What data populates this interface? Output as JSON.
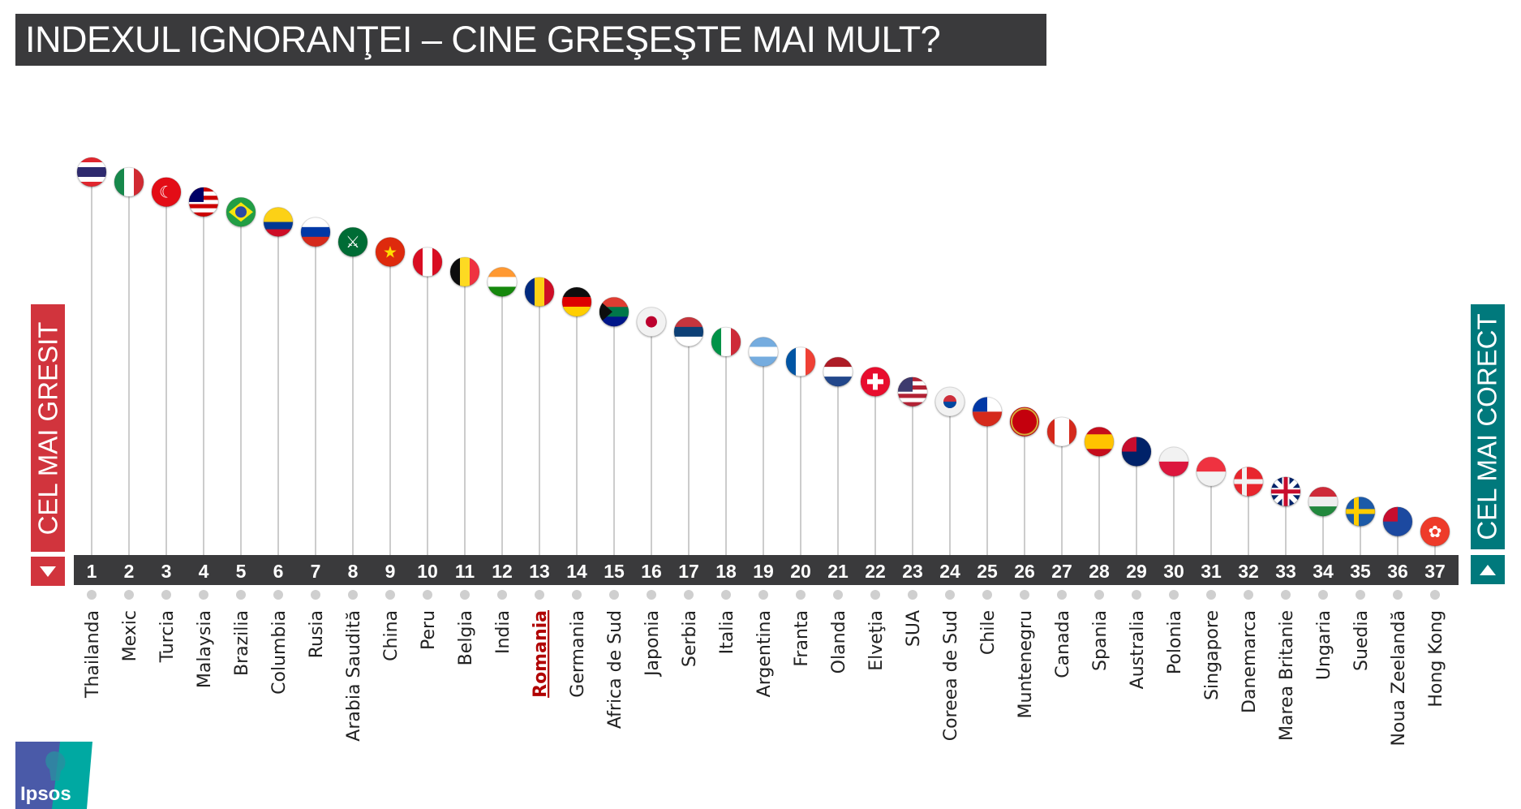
{
  "title": "INDEXUL IGNORANŢEI – CINE GREŞEŞTE MAI MULT?",
  "left_label": "CEL MAI GRESIT",
  "right_label": "CEL MAI CORECT",
  "logo_text": "Ipsos",
  "colors": {
    "bar": "#3a3a3c",
    "wrong": "#d1343d",
    "correct": "#00797c",
    "stem": "#cccccc",
    "highlight": "#b00000"
  },
  "chart_data": {
    "type": "scatter",
    "title": "",
    "xlabel": "",
    "ylabel": "",
    "highlight": "Romania",
    "points": [
      {
        "rank": 1,
        "country": "Thailanda",
        "flag": {
          "p": "h",
          "c": [
            "#e0262e",
            "#ffffff",
            "#2d2a6e",
            "#2d2a6e",
            "#ffffff",
            "#e0262e"
          ]
        }
      },
      {
        "rank": 2,
        "country": "Mexic",
        "flag": {
          "p": "v",
          "c": [
            "#14884b",
            "#ffffff",
            "#d12a30"
          ]
        }
      },
      {
        "rank": 3,
        "country": "Turcia",
        "flag": {
          "p": "h",
          "c": [
            "#e30a17"
          ],
          "sym": "☾",
          "sc": "#ffffff"
        }
      },
      {
        "rank": 4,
        "country": "Malaysia",
        "flag": {
          "p": "h",
          "c": [
            "#cc0001",
            "#ffffff",
            "#cc0001",
            "#ffffff",
            "#cc0001",
            "#ffffff",
            "#cc0001"
          ],
          "canton": "#010066"
        }
      },
      {
        "rank": 5,
        "country": "Brazilia",
        "flag": {
          "p": "h",
          "c": [
            "#229e45"
          ],
          "diamond": "#f8e509",
          "disc": "#2b49a3"
        }
      },
      {
        "rank": 6,
        "country": "Columbia",
        "flag": {
          "p": "h",
          "c": [
            "#fcd116",
            "#fcd116",
            "#003893",
            "#ce1126"
          ]
        }
      },
      {
        "rank": 7,
        "country": "Rusia",
        "flag": {
          "p": "h",
          "c": [
            "#ffffff",
            "#0039a6",
            "#d52b1e"
          ]
        }
      },
      {
        "rank": 8,
        "country": "Arabia Saudită",
        "flag": {
          "p": "h",
          "c": [
            "#006c35"
          ],
          "sym": "⚔",
          "sc": "#ffffff"
        }
      },
      {
        "rank": 9,
        "country": "China",
        "flag": {
          "p": "h",
          "c": [
            "#de2910"
          ],
          "sym": "★",
          "sc": "#ffde00"
        }
      },
      {
        "rank": 10,
        "country": "Peru",
        "flag": {
          "p": "v",
          "c": [
            "#d91023",
            "#ffffff",
            "#d91023"
          ]
        }
      },
      {
        "rank": 11,
        "country": "Belgia",
        "flag": {
          "p": "v",
          "c": [
            "#111111",
            "#fdda24",
            "#ef3340"
          ]
        }
      },
      {
        "rank": 12,
        "country": "India",
        "flag": {
          "p": "h",
          "c": [
            "#ff9933",
            "#ffffff",
            "#138808"
          ]
        }
      },
      {
        "rank": 13,
        "country": "Romania",
        "flag": {
          "p": "v",
          "c": [
            "#002b7f",
            "#fcd116",
            "#ce1126"
          ]
        }
      },
      {
        "rank": 14,
        "country": "Germania",
        "flag": {
          "p": "h",
          "c": [
            "#111111",
            "#dd0000",
            "#ffce00"
          ]
        }
      },
      {
        "rank": 15,
        "country": "Africa de Sud",
        "flag": {
          "p": "h",
          "c": [
            "#e03c31",
            "#007749",
            "#001489"
          ],
          "tri": "#111111"
        }
      },
      {
        "rank": 16,
        "country": "Japonia",
        "flag": {
          "p": "h",
          "c": [
            "#f2f2f2"
          ],
          "disc": "#bc002d"
        }
      },
      {
        "rank": 17,
        "country": "Serbia",
        "flag": {
          "p": "h",
          "c": [
            "#c6363c",
            "#0c4076",
            "#ffffff"
          ]
        }
      },
      {
        "rank": 18,
        "country": "Italia",
        "flag": {
          "p": "v",
          "c": [
            "#009246",
            "#ffffff",
            "#ce2b37"
          ]
        }
      },
      {
        "rank": 19,
        "country": "Argentina",
        "flag": {
          "p": "h",
          "c": [
            "#74acdf",
            "#ffffff",
            "#74acdf"
          ]
        }
      },
      {
        "rank": 20,
        "country": "Franta",
        "flag": {
          "p": "v",
          "c": [
            "#0055a4",
            "#ffffff",
            "#ef4135"
          ]
        }
      },
      {
        "rank": 21,
        "country": "Olanda",
        "flag": {
          "p": "h",
          "c": [
            "#ae1c28",
            "#ffffff",
            "#21468b"
          ]
        }
      },
      {
        "rank": 22,
        "country": "Elveţia",
        "flag": {
          "p": "h",
          "c": [
            "#e8112d"
          ],
          "cross": "#ffffff"
        }
      },
      {
        "rank": 23,
        "country": "SUA",
        "flag": {
          "p": "h",
          "c": [
            "#b22234",
            "#ffffff",
            "#b22234",
            "#ffffff",
            "#b22234",
            "#ffffff",
            "#b22234"
          ],
          "canton": "#3c3b6e"
        }
      },
      {
        "rank": 24,
        "country": "Coreea de Sud",
        "flag": {
          "p": "h",
          "c": [
            "#f2f2f2"
          ],
          "disc": "#cd2e3a",
          "disc2": "#0047a0"
        }
      },
      {
        "rank": 25,
        "country": "Chile",
        "flag": {
          "p": "h",
          "c": [
            "#ffffff",
            "#d52b1e"
          ],
          "canton": "#0039a6"
        }
      },
      {
        "rank": 26,
        "country": "Muntenegru",
        "flag": {
          "p": "h",
          "c": [
            "#c40308"
          ],
          "ring": "#d3ae3b"
        }
      },
      {
        "rank": 27,
        "country": "Canada",
        "flag": {
          "p": "v",
          "c": [
            "#d52b1e",
            "#ffffff",
            "#ffffff",
            "#d52b1e"
          ]
        }
      },
      {
        "rank": 28,
        "country": "Spania",
        "flag": {
          "p": "h",
          "c": [
            "#c60b1e",
            "#ffc400",
            "#ffc400",
            "#c60b1e"
          ]
        }
      },
      {
        "rank": 29,
        "country": "Australia",
        "flag": {
          "p": "h",
          "c": [
            "#012169"
          ],
          "canton": "#c8102e"
        }
      },
      {
        "rank": 30,
        "country": "Polonia",
        "flag": {
          "p": "h",
          "c": [
            "#f2f2f2",
            "#dc143c"
          ]
        }
      },
      {
        "rank": 31,
        "country": "Singapore",
        "flag": {
          "p": "h",
          "c": [
            "#ef3340",
            "#f2f2f2"
          ]
        }
      },
      {
        "rank": 32,
        "country": "Danemarca",
        "flag": {
          "p": "h",
          "c": [
            "#e8262d"
          ],
          "nordic": "#f2f2f2"
        }
      },
      {
        "rank": 33,
        "country": "Marea Britanie",
        "flag": {
          "p": "h",
          "c": [
            "#012169"
          ],
          "cross": "#c8102e",
          "saltire": "#ffffff"
        }
      },
      {
        "rank": 34,
        "country": "Ungaria",
        "flag": {
          "p": "h",
          "c": [
            "#ce2939",
            "#eeeeee",
            "#21883e"
          ]
        }
      },
      {
        "rank": 35,
        "country": "Suedia",
        "flag": {
          "p": "h",
          "c": [
            "#1f5aa8"
          ],
          "nordic": "#fecc02"
        }
      },
      {
        "rank": 36,
        "country": "Noua Zeelandă",
        "flag": {
          "p": "h",
          "c": [
            "#1f4aa0"
          ],
          "canton": "#c8102e"
        }
      },
      {
        "rank": 37,
        "country": "Hong Kong",
        "flag": {
          "p": "h",
          "c": [
            "#ee3b2a"
          ],
          "sym": "✿",
          "sc": "#ffffff"
        }
      }
    ]
  }
}
